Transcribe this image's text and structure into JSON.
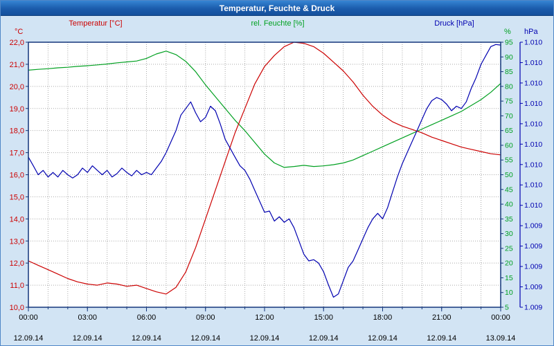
{
  "window": {
    "title": "Temperatur, Feuchte & Druck"
  },
  "chart_data": {
    "type": "line",
    "title": "Temperatur, Feuchte & Druck",
    "legend_position": "top",
    "grid": true,
    "legend": [
      {
        "label": "Temperatur [°C]",
        "color": "#cc0000"
      },
      {
        "label": "rel. Feuchte [%]",
        "color": "#00a020"
      },
      {
        "label": "Druck [hPa]",
        "color": "#0000b0"
      }
    ],
    "x_axis": {
      "range_hours": [
        0,
        24
      ],
      "minor_tick_hours": 1,
      "ticks": [
        {
          "hour": 0,
          "time": "00:00",
          "date": "12.09.14"
        },
        {
          "hour": 3,
          "time": "03:00",
          "date": "12.09.14"
        },
        {
          "hour": 6,
          "time": "06:00",
          "date": "12.09.14"
        },
        {
          "hour": 9,
          "time": "09:00",
          "date": "12.09.14"
        },
        {
          "hour": 12,
          "time": "12:00",
          "date": "12.09.14"
        },
        {
          "hour": 15,
          "time": "15:00",
          "date": "12.09.14"
        },
        {
          "hour": 18,
          "time": "18:00",
          "date": "12.09.14"
        },
        {
          "hour": 21,
          "time": "21:00",
          "date": "12.09.14"
        },
        {
          "hour": 24,
          "time": "00:00",
          "date": "13.09.14"
        }
      ]
    },
    "y_axes": {
      "temperature": {
        "unit": "°C",
        "color": "#cc0000",
        "min": 10,
        "max": 22,
        "tick_values": [
          22,
          21,
          20,
          19,
          18,
          17,
          16,
          15,
          14,
          13,
          12,
          11,
          10
        ],
        "tick_labels": [
          "22,0",
          "21,0",
          "20,0",
          "19,0",
          "18,0",
          "17,0",
          "16,0",
          "15,0",
          "14,0",
          "13,0",
          "12,0",
          "11,0",
          "10,0"
        ]
      },
      "humidity": {
        "unit": "%",
        "color": "#00a020",
        "min": 5,
        "max": 95,
        "tick_values": [
          95,
          90,
          85,
          80,
          75,
          70,
          65,
          60,
          55,
          50,
          45,
          40,
          35,
          30,
          25,
          20,
          15,
          10,
          5
        ],
        "tick_labels": [
          "95",
          "90",
          "85",
          "80",
          "75",
          "70",
          "65",
          "60",
          "55",
          "50",
          "45",
          "40",
          "35",
          "30",
          "25",
          "20",
          "15",
          "10",
          "5"
        ]
      },
      "pressure": {
        "unit": "hPa",
        "color": "#0000b0",
        "min": 1009.0,
        "max": 1010.4,
        "tick_labels": [
          "1.010",
          "1.010",
          "1.010",
          "1.010",
          "1.010",
          "1.010",
          "1.010",
          "1.010",
          "1.010",
          "1.009",
          "1.009",
          "1.009",
          "1.009",
          "1.009"
        ]
      }
    },
    "series": [
      {
        "name": "humidity",
        "axis": "humidity",
        "color": "#00a020",
        "x_start": 0,
        "x_step": 0.5,
        "values": [
          85.5,
          85.8,
          86.0,
          86.3,
          86.5,
          86.8,
          87.0,
          87.3,
          87.6,
          88.0,
          88.3,
          88.6,
          89.5,
          91.0,
          92.0,
          90.8,
          88.5,
          85.0,
          80.5,
          76.5,
          72.5,
          68.5,
          65.0,
          61.0,
          57.0,
          54.0,
          52.5,
          52.8,
          53.2,
          52.8,
          53.0,
          53.4,
          54.0,
          55.0,
          56.5,
          58.0,
          59.5,
          61.0,
          62.5,
          64.0,
          65.5,
          67.0,
          68.5,
          70.0,
          71.5,
          73.5,
          75.5,
          78.0,
          81.0
        ]
      },
      {
        "name": "temperature",
        "axis": "temperature",
        "color": "#cc0000",
        "x_start": 0,
        "x_step": 0.5,
        "values": [
          12.1,
          11.9,
          11.7,
          11.5,
          11.3,
          11.15,
          11.05,
          11.0,
          11.1,
          11.05,
          10.95,
          11.0,
          10.85,
          10.7,
          10.6,
          10.9,
          11.6,
          12.7,
          14.0,
          15.3,
          16.6,
          17.9,
          19.0,
          20.1,
          20.9,
          21.4,
          21.8,
          22.0,
          21.95,
          21.8,
          21.5,
          21.1,
          20.7,
          20.2,
          19.6,
          19.1,
          18.7,
          18.4,
          18.2,
          18.05,
          17.9,
          17.7,
          17.55,
          17.4,
          17.25,
          17.15,
          17.05,
          16.95,
          16.9
        ]
      },
      {
        "name": "pressure",
        "axis": "pressure",
        "color": "#0000b0",
        "x_start": 0,
        "x_step": 0.25,
        "values": [
          1009.793,
          1009.747,
          1009.7,
          1009.723,
          1009.688,
          1009.712,
          1009.688,
          1009.723,
          1009.7,
          1009.683,
          1009.7,
          1009.735,
          1009.712,
          1009.747,
          1009.723,
          1009.7,
          1009.723,
          1009.688,
          1009.706,
          1009.735,
          1009.712,
          1009.694,
          1009.723,
          1009.7,
          1009.712,
          1009.7,
          1009.735,
          1009.77,
          1009.817,
          1009.875,
          1009.933,
          1010.015,
          1010.05,
          1010.085,
          1010.027,
          1009.98,
          1010.003,
          1010.062,
          1010.038,
          1009.968,
          1009.887,
          1009.84,
          1009.793,
          1009.747,
          1009.723,
          1009.677,
          1009.618,
          1009.56,
          1009.502,
          1009.508,
          1009.455,
          1009.478,
          1009.449,
          1009.467,
          1009.42,
          1009.35,
          1009.28,
          1009.245,
          1009.251,
          1009.233,
          1009.187,
          1009.117,
          1009.053,
          1009.07,
          1009.14,
          1009.21,
          1009.245,
          1009.303,
          1009.362,
          1009.42,
          1009.467,
          1009.496,
          1009.467,
          1009.525,
          1009.607,
          1009.688,
          1009.758,
          1009.817,
          1009.875,
          1009.933,
          1009.992,
          1010.05,
          1010.091,
          1010.108,
          1010.097,
          1010.073,
          1010.038,
          1010.062,
          1010.05,
          1010.085,
          1010.155,
          1010.213,
          1010.283,
          1010.33,
          1010.377,
          1010.388,
          1010.385
        ]
      }
    ]
  }
}
